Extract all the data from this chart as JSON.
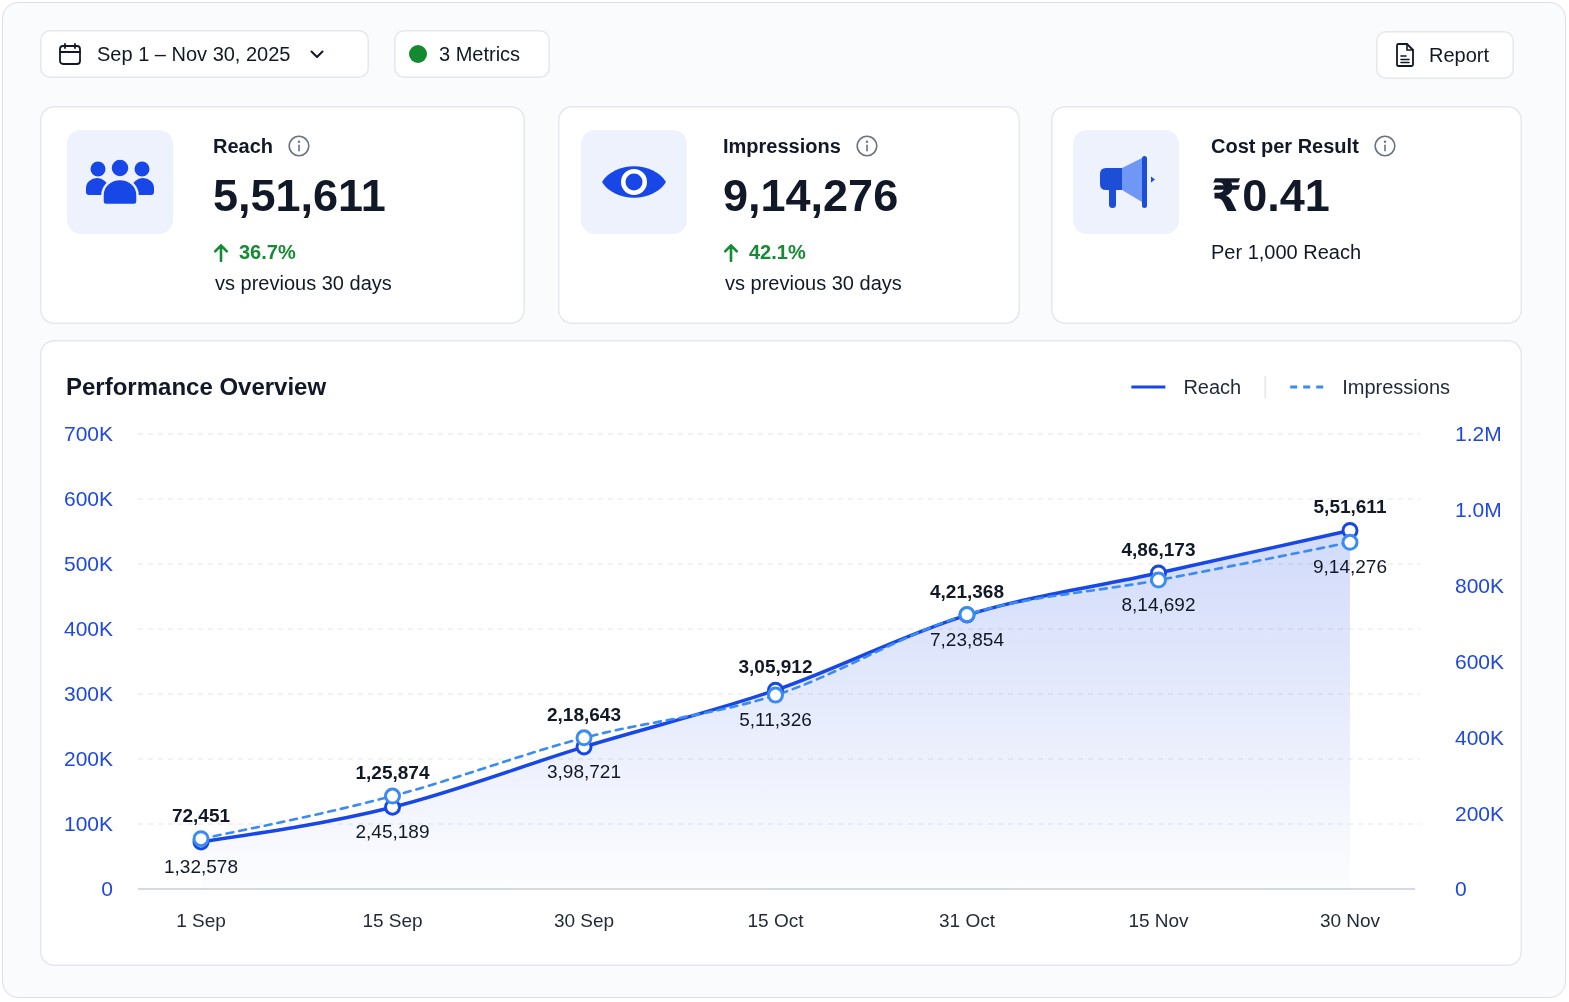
{
  "chart_data": [
    {
      "type": "other",
      "annotations": [
        "Sep 1 – Nov 30, 2025",
        "3 Metrics",
        "Report"
      ]
    },
    {
      "type": "other",
      "title": "Reach",
      "annotations": [
        "5,51,611",
        "36.7%",
        "vs previous 30 days"
      ]
    },
    {
      "type": "other",
      "title": "Impressions",
      "annotations": [
        "9,14,276",
        "42.1%",
        "vs previous 30 days"
      ]
    },
    {
      "type": "other",
      "title": "Cost per Result",
      "annotations": [
        "₹0.41",
        "Per 1,000 Reach"
      ]
    },
    {
      "type": "line",
      "title": "Performance Overview",
      "categories": [
        "1 Sep",
        "15 Sep",
        "30 Sep",
        "15 Oct",
        "31 Oct",
        "15 Nov",
        "30 Nov"
      ],
      "series": [
        {
          "name": "Reach",
          "type": "area",
          "color": "#1747e6",
          "line_style": "solid",
          "values": [
            72451,
            125874,
            218643,
            305912,
            421368,
            486173,
            551611
          ],
          "value_labels": [
            "72,451",
            "1,25,874",
            "2,18,643",
            "3,05,912",
            "4,21,368",
            "4,86,173",
            "5,51,611"
          ]
        },
        {
          "name": "Impressions",
          "type": "line",
          "axis": "y2",
          "color": "#3b8bf0",
          "line_style": "dashed",
          "values": [
            132578,
            245189,
            398721,
            511326,
            723854,
            814692,
            914276
          ],
          "value_labels": [
            "1,32,578",
            "2,45,189",
            "3,98,721",
            "5,11,326",
            "7,23,854",
            "8,14,692",
            "9,14,276"
          ]
        }
      ],
      "ylim": [
        0,
        700000
      ],
      "yticks": [
        0,
        {
          "value": 100000,
          "label": "100K"
        },
        {
          "value": 200000,
          "label": "200K"
        },
        {
          "value": 300000,
          "label": "300K"
        },
        {
          "value": 400000,
          "label": "400K"
        },
        {
          "value": 500000,
          "label": "500K"
        },
        {
          "value": 600000,
          "label": "600K"
        },
        {
          "value": 700000,
          "label": "700K"
        }
      ],
      "y2lim": [
        0,
        1200000
      ],
      "y2ticks": [
        0,
        {
          "value": 200000,
          "label": "200K"
        },
        {
          "value": 400000,
          "label": "400K"
        },
        {
          "value": 600000,
          "label": "600K"
        },
        {
          "value": 800000,
          "label": "800K"
        },
        {
          "value": 1000000,
          "label": "1.0M"
        },
        {
          "value": 1200000,
          "label": "1.2M"
        }
      ],
      "grid": "y",
      "legend": "top right",
      "marker": "circle"
    }
  ]
}
